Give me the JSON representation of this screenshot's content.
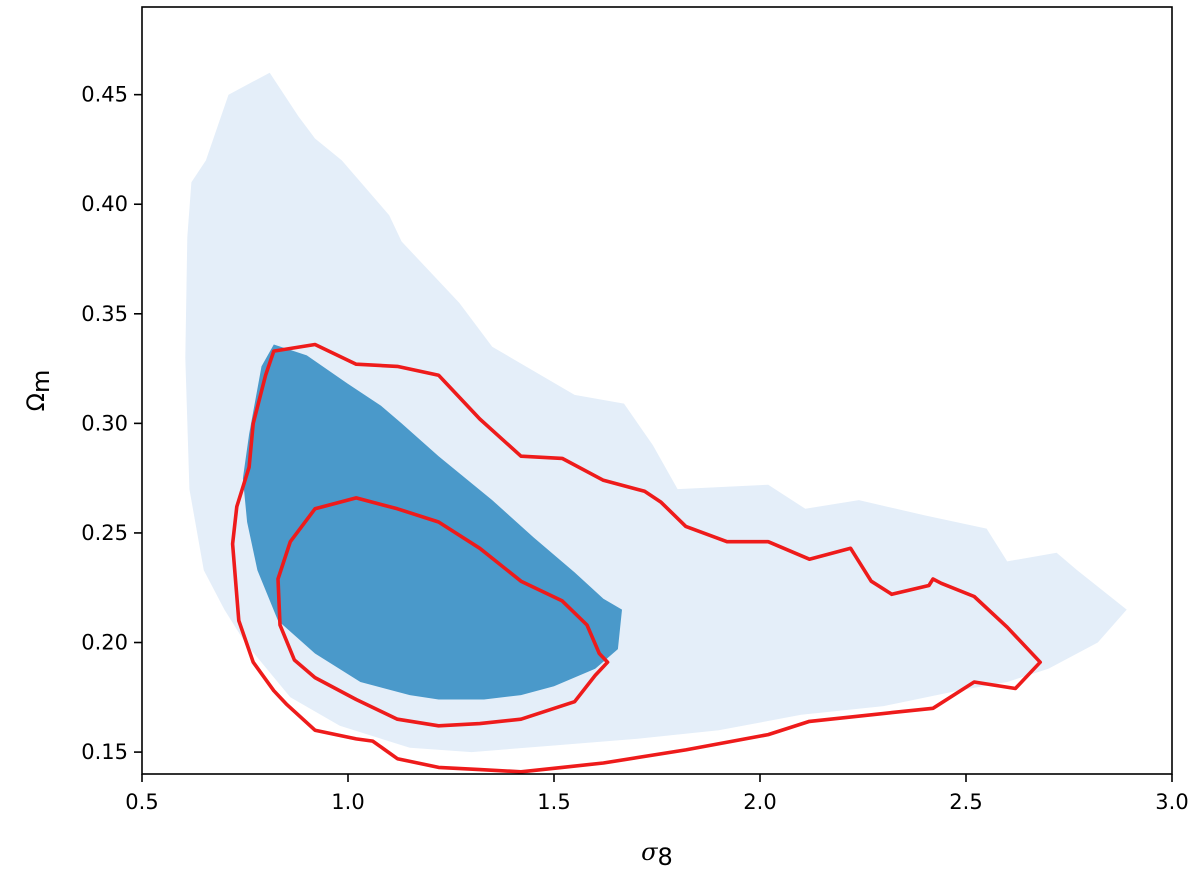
{
  "chart_data": {
    "type": "contour",
    "title": "",
    "xlabel": "σ",
    "xlabel_sub": "8",
    "ylabel": "Ω",
    "ylabel_sub": "m",
    "xlim": [
      0.5,
      3.0
    ],
    "ylim": [
      0.14,
      0.49
    ],
    "xticks": [
      0.5,
      1.0,
      1.5,
      2.0,
      2.5,
      3.0
    ],
    "xtick_labels": [
      "0.5",
      "1.0",
      "1.5",
      "2.0",
      "2.5",
      "3.0"
    ],
    "yticks": [
      0.15,
      0.2,
      0.25,
      0.3,
      0.35,
      0.4,
      0.45
    ],
    "ytick_labels": [
      "0.15",
      "0.20",
      "0.25",
      "0.30",
      "0.35",
      "0.40",
      "0.45"
    ],
    "grid": false,
    "series": [
      {
        "style": "filled",
        "color": "#e4eef9",
        "points": [
          [
            0.61,
            0.385
          ],
          [
            0.62,
            0.41
          ],
          [
            0.655,
            0.42
          ],
          [
            0.71,
            0.45
          ],
          [
            0.81,
            0.46
          ],
          [
            0.88,
            0.44
          ],
          [
            0.92,
            0.43
          ],
          [
            0.985,
            0.42
          ],
          [
            1.1,
            0.395
          ],
          [
            1.13,
            0.383
          ],
          [
            1.27,
            0.355
          ],
          [
            1.35,
            0.335
          ],
          [
            1.55,
            0.313
          ],
          [
            1.67,
            0.309
          ],
          [
            1.74,
            0.29
          ],
          [
            1.8,
            0.27
          ],
          [
            2.02,
            0.272
          ],
          [
            2.11,
            0.261
          ],
          [
            2.24,
            0.265
          ],
          [
            2.4,
            0.258
          ],
          [
            2.55,
            0.252
          ],
          [
            2.6,
            0.237
          ],
          [
            2.72,
            0.241
          ],
          [
            2.77,
            0.233
          ],
          [
            2.89,
            0.215
          ],
          [
            2.82,
            0.2
          ],
          [
            2.7,
            0.188
          ],
          [
            2.6,
            0.182
          ],
          [
            2.48,
            0.178
          ],
          [
            2.3,
            0.171
          ],
          [
            2.1,
            0.167
          ],
          [
            1.9,
            0.16
          ],
          [
            1.7,
            0.156
          ],
          [
            1.5,
            0.153
          ],
          [
            1.3,
            0.15
          ],
          [
            1.15,
            0.152
          ],
          [
            0.98,
            0.162
          ],
          [
            0.86,
            0.175
          ],
          [
            0.75,
            0.2
          ],
          [
            0.7,
            0.215
          ],
          [
            0.65,
            0.233
          ],
          [
            0.615,
            0.27
          ],
          [
            0.605,
            0.33
          ]
        ]
      },
      {
        "style": "filled",
        "color": "#4a99ca",
        "points": [
          [
            0.82,
            0.336
          ],
          [
            0.9,
            0.331
          ],
          [
            1.0,
            0.318
          ],
          [
            1.08,
            0.308
          ],
          [
            1.13,
            0.3
          ],
          [
            1.22,
            0.285
          ],
          [
            1.35,
            0.265
          ],
          [
            1.45,
            0.248
          ],
          [
            1.55,
            0.232
          ],
          [
            1.62,
            0.22
          ],
          [
            1.665,
            0.215
          ],
          [
            1.655,
            0.197
          ],
          [
            1.6,
            0.188
          ],
          [
            1.5,
            0.18
          ],
          [
            1.42,
            0.176
          ],
          [
            1.33,
            0.174
          ],
          [
            1.22,
            0.174
          ],
          [
            1.15,
            0.176
          ],
          [
            1.03,
            0.182
          ],
          [
            0.92,
            0.195
          ],
          [
            0.83,
            0.21
          ],
          [
            0.78,
            0.233
          ],
          [
            0.755,
            0.255
          ],
          [
            0.745,
            0.275
          ],
          [
            0.76,
            0.295
          ],
          [
            0.79,
            0.326
          ]
        ]
      },
      {
        "style": "line",
        "color": "#ee1b1b",
        "points": [
          [
            0.82,
            0.333
          ],
          [
            0.92,
            0.336
          ],
          [
            1.02,
            0.327
          ],
          [
            1.12,
            0.326
          ],
          [
            1.22,
            0.322
          ],
          [
            1.32,
            0.302
          ],
          [
            1.42,
            0.285
          ],
          [
            1.52,
            0.284
          ],
          [
            1.62,
            0.274
          ],
          [
            1.72,
            0.269
          ],
          [
            1.76,
            0.264
          ],
          [
            1.82,
            0.253
          ],
          [
            1.92,
            0.246
          ],
          [
            2.02,
            0.246
          ],
          [
            2.12,
            0.238
          ],
          [
            2.22,
            0.243
          ],
          [
            2.27,
            0.228
          ],
          [
            2.32,
            0.222
          ],
          [
            2.41,
            0.226
          ],
          [
            2.42,
            0.229
          ],
          [
            2.44,
            0.227
          ],
          [
            2.52,
            0.221
          ],
          [
            2.6,
            0.207
          ],
          [
            2.68,
            0.191
          ],
          [
            2.62,
            0.179
          ],
          [
            2.52,
            0.182
          ],
          [
            2.42,
            0.17
          ],
          [
            2.32,
            0.168
          ],
          [
            2.12,
            0.164
          ],
          [
            2.02,
            0.158
          ],
          [
            1.82,
            0.151
          ],
          [
            1.62,
            0.145
          ],
          [
            1.52,
            0.143
          ],
          [
            1.42,
            0.141
          ],
          [
            1.32,
            0.142
          ],
          [
            1.22,
            0.143
          ],
          [
            1.12,
            0.147
          ],
          [
            1.06,
            0.155
          ],
          [
            1.02,
            0.156
          ],
          [
            0.92,
            0.16
          ],
          [
            0.85,
            0.172
          ],
          [
            0.82,
            0.178
          ],
          [
            0.77,
            0.191
          ],
          [
            0.735,
            0.21
          ],
          [
            0.72,
            0.245
          ],
          [
            0.73,
            0.262
          ],
          [
            0.76,
            0.28
          ],
          [
            0.77,
            0.3
          ],
          [
            0.8,
            0.322
          ]
        ]
      },
      {
        "style": "line",
        "color": "#ee1b1b",
        "points": [
          [
            0.92,
            0.261
          ],
          [
            1.02,
            0.266
          ],
          [
            1.12,
            0.261
          ],
          [
            1.22,
            0.255
          ],
          [
            1.32,
            0.243
          ],
          [
            1.42,
            0.228
          ],
          [
            1.52,
            0.219
          ],
          [
            1.58,
            0.208
          ],
          [
            1.61,
            0.195
          ],
          [
            1.63,
            0.191
          ],
          [
            1.6,
            0.185
          ],
          [
            1.55,
            0.173
          ],
          [
            1.42,
            0.165
          ],
          [
            1.32,
            0.163
          ],
          [
            1.22,
            0.162
          ],
          [
            1.12,
            0.165
          ],
          [
            1.02,
            0.174
          ],
          [
            0.92,
            0.184
          ],
          [
            0.87,
            0.192
          ],
          [
            0.835,
            0.208
          ],
          [
            0.83,
            0.229
          ],
          [
            0.86,
            0.246
          ]
        ]
      }
    ]
  }
}
